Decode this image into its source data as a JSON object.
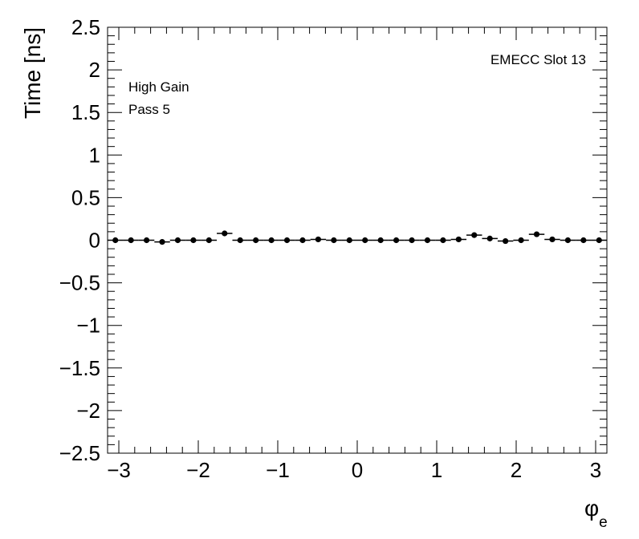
{
  "chart_data": {
    "type": "scatter",
    "title": "",
    "xlabel": "φ",
    "xlabel_sub": "e",
    "ylabel": "Time [ns]",
    "xlim": [
      -3.14159,
      3.14159
    ],
    "ylim": [
      -2.5,
      2.5
    ],
    "xticks": [
      -3,
      -2,
      -1,
      0,
      1,
      2,
      3
    ],
    "xtick_labels": [
      "−3",
      "−2",
      "−1",
      "0",
      "1",
      "2",
      "3"
    ],
    "yticks": [
      -2.5,
      -2,
      -1.5,
      -1,
      -0.5,
      0,
      0.5,
      1,
      1.5,
      2,
      2.5
    ],
    "ytick_labels": [
      "−2.5",
      "−2",
      "−1.5",
      "−1",
      "−0.5",
      "0",
      "0.5",
      "1",
      "1.5",
      "2",
      "2.5"
    ],
    "grid": false,
    "annotations": {
      "slot": "EMECC Slot 13",
      "gain": "High Gain",
      "pass": "Pass 5"
    },
    "series": [
      {
        "marker": "filled-circle",
        "color": "#000000",
        "x": [
          -3.0434,
          -2.8471,
          -2.6507,
          -2.4544,
          -2.258,
          -2.0617,
          -1.8653,
          -1.669,
          -1.4726,
          -1.2763,
          -1.0799,
          -0.8836,
          -0.6872,
          -0.4909,
          -0.2945,
          -0.0982,
          0.0982,
          0.2945,
          0.4909,
          0.6872,
          0.8836,
          1.0799,
          1.2763,
          1.4726,
          1.669,
          1.8653,
          2.0617,
          2.258,
          2.4544,
          2.6507,
          2.8471,
          3.0434
        ],
        "y": [
          0.0,
          0.0,
          0.0,
          -0.02,
          0.0,
          0.0,
          0.0,
          0.08,
          0.0,
          0.0,
          0.0,
          0.0,
          0.0,
          0.01,
          0.0,
          0.0,
          0.0,
          0.0,
          0.0,
          0.0,
          0.0,
          0.0,
          0.01,
          0.06,
          0.02,
          -0.01,
          0.0,
          0.07,
          0.01,
          0.0,
          0.0,
          0.0
        ],
        "xerr": 0.0982
      }
    ]
  }
}
